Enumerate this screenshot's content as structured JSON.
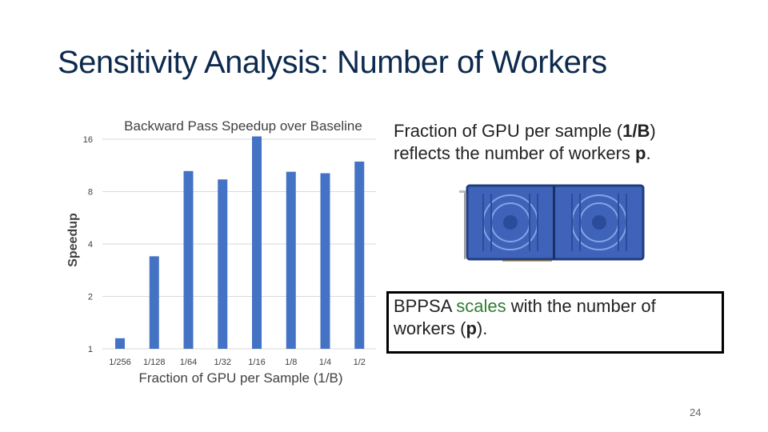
{
  "slide": {
    "title": "Sensitivity Analysis: Number of Workers",
    "page_number": "24",
    "note_top": {
      "part1": "Fraction of GPU per sample (",
      "part2_bold": "1/B",
      "part3": ") reflects the number of workers ",
      "part4_bold": "p",
      "part5": "."
    },
    "note_box": {
      "part1": "BPPSA ",
      "part2_accent": "scales",
      "part3": " with the number of workers (",
      "part4_bold": "p",
      "part5": ")."
    },
    "image_icon": "gpu-card-image"
  },
  "chart_data": {
    "type": "bar",
    "title": "Backward Pass Speedup over Baseline",
    "xlabel": "Fraction of GPU per Sample (1/B)",
    "ylabel": "Speedup",
    "y_scale": "log2",
    "ylim": [
      1,
      16
    ],
    "y_ticks": [
      "1",
      "2",
      "4",
      "8",
      "16"
    ],
    "categories": [
      "1/256",
      "1/128",
      "1/64",
      "1/32",
      "1/16",
      "1/8",
      "1/4",
      "1/2"
    ],
    "values": [
      1.15,
      3.4,
      10.5,
      9.4,
      16.6,
      10.4,
      10.2,
      11.9
    ],
    "grid": true,
    "legend": "none",
    "bar_color": "#4472c4",
    "grid_color": "#d9d9d9",
    "accent_color": "#2e7d32"
  }
}
